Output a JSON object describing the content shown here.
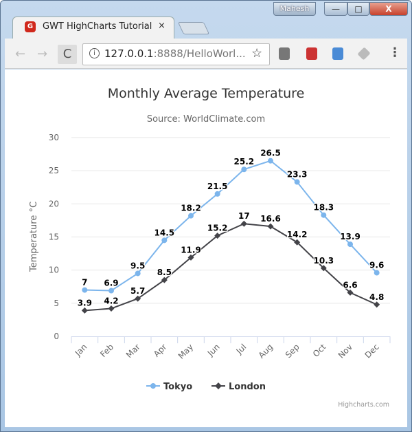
{
  "window": {
    "user": "Mahesh",
    "minimize": "—",
    "maximize": "□",
    "close": "X"
  },
  "tab": {
    "title": "GWT HighCharts Tutorial",
    "close": "×",
    "icon": "gwt-icon"
  },
  "toolbar": {
    "back": "←",
    "forward": "→",
    "reload": "C",
    "url_host": "127.0.0.1",
    "url_rest": ":8888/HelloWorl...",
    "star": "☆",
    "menu": "⋮"
  },
  "chart_data": {
    "type": "line",
    "title": "Monthly Average Temperature",
    "subtitle": "Source: WorldClimate.com",
    "ylabel": "Temperature °C",
    "xlabel": "",
    "ylim": [
      0,
      30
    ],
    "yticks": [
      "0",
      "5",
      "10",
      "15",
      "20",
      "25",
      "30"
    ],
    "categories": [
      "Jan",
      "Feb",
      "Mar",
      "Apr",
      "May",
      "Jun",
      "Jul",
      "Aug",
      "Sep",
      "Oct",
      "Nov",
      "Dec"
    ],
    "series": [
      {
        "name": "Tokyo",
        "color": "#7cb5ec",
        "marker": "circle",
        "values": [
          7,
          6.9,
          9.5,
          14.5,
          18.2,
          21.5,
          25.2,
          26.5,
          23.3,
          18.3,
          13.9,
          9.6
        ]
      },
      {
        "name": "London",
        "color": "#434348",
        "marker": "diamond",
        "values": [
          3.9,
          4.2,
          5.7,
          8.5,
          11.9,
          15.2,
          17,
          16.6,
          14.2,
          10.3,
          6.6,
          4.8
        ]
      }
    ],
    "grid": true,
    "legend": "bottom",
    "credits": "Highcharts.com"
  }
}
